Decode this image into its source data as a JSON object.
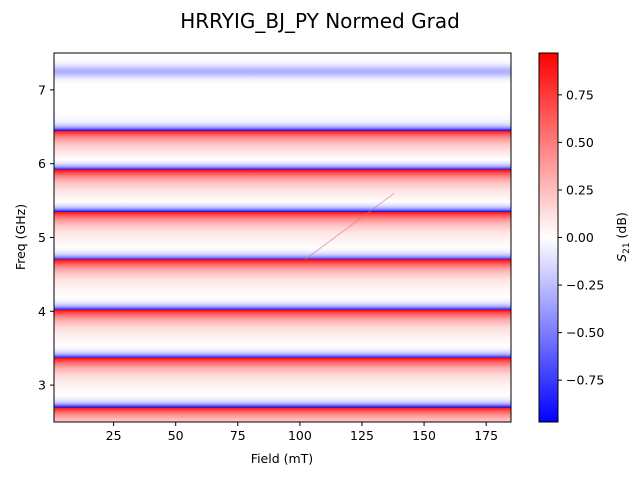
{
  "chart_data": {
    "type": "heatmap",
    "title": "HRRYIG_BJ_PY Normed Grad",
    "xlabel": "Field (mT)",
    "ylabel": "Freq (GHz)",
    "xlim": [
      1,
      185
    ],
    "ylim": [
      2.5,
      7.5
    ],
    "xticks": [
      25,
      50,
      75,
      100,
      125,
      150,
      175
    ],
    "yticks": [
      3,
      4,
      5,
      6,
      7
    ],
    "colorbar": {
      "label_prefix": "S",
      "label_sub": "21",
      "label_suffix": " (dB)",
      "cmap": "bwr",
      "vmin": -0.97,
      "vmax": 0.97,
      "ticks": [
        "−0.75",
        "−0.50",
        "−0.25",
        "0.00",
        "0.25",
        "0.50",
        "0.75"
      ],
      "tick_values": [
        -0.75,
        -0.5,
        -0.25,
        0.0,
        0.25,
        0.5,
        0.75
      ]
    },
    "colors": {
      "negative": "#0000ff",
      "zero": "#ffffff",
      "positive": "#ff0000"
    },
    "resonance_bands_ghz": [
      {
        "freq": 2.7,
        "amp": 1.0
      },
      {
        "freq": 3.37,
        "amp": 1.0
      },
      {
        "freq": 4.02,
        "amp": 1.0
      },
      {
        "freq": 4.7,
        "amp": 1.0
      },
      {
        "freq": 5.35,
        "amp": 1.0
      },
      {
        "freq": 5.92,
        "amp": 1.0
      },
      {
        "freq": 6.45,
        "amp": 1.0
      },
      {
        "freq": 7.25,
        "amp": -0.3
      }
    ],
    "anticrossing": {
      "x_start": 102,
      "y_start": 4.7,
      "x_end": 138,
      "y_end": 5.6
    }
  }
}
